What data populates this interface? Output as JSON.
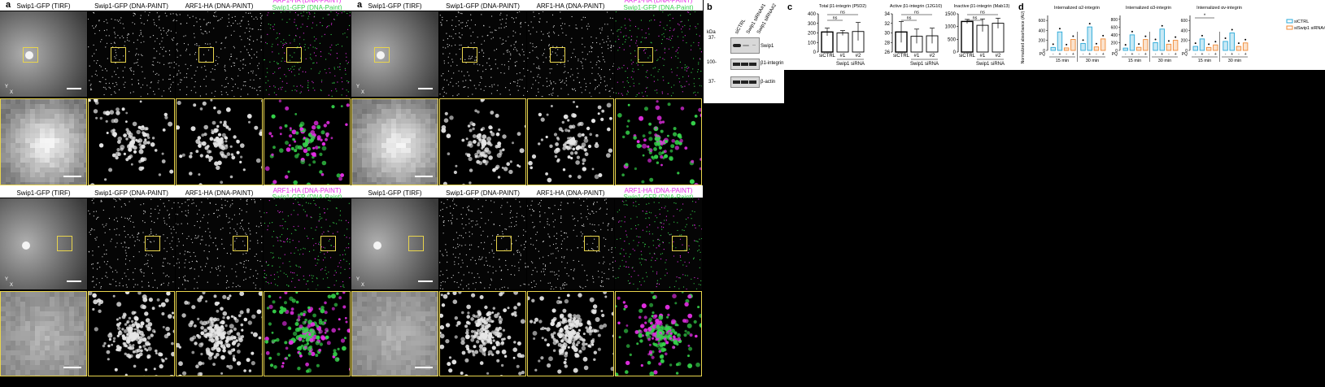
{
  "panels": [
    {
      "label": "a",
      "rows": [
        {
          "titles": [
            "Swip1-GFP (TIRF)",
            "Swip1-GFP (DNA-PAINT)",
            "ARF1-HA (DNA-PAINT)"
          ],
          "merge_title_1": "ARF1-HA (DNA-PAINT)",
          "merge_title_2": "Swip1-GFP (DNA-Paint)"
        },
        {
          "titles": [
            "Swip1-GFP (TIRF)",
            "Swip1-GFP (DNA-PAINT)",
            "ARF1-HA (DNA-PAINT)"
          ],
          "merge_title_1": "ARF1-HA (DNA-PAINT)",
          "merge_title_2": "Swip1-GFP (DNA-Paint)"
        }
      ]
    },
    {
      "label": "a",
      "rows": [
        {
          "titles": [
            "Swip1-GFP (TIRF)",
            "Swip1-GFP (DNA-PAINT)",
            "ARF1-HA (DNA-PAINT)"
          ],
          "merge_title_1": "ARF1-HA (DNA-PAINT)",
          "merge_title_2": "Swip1-GFP (DNA-Paint)"
        },
        {
          "titles": [
            "Swip1-GFP (TIRF)",
            "Swip1-GFP (DNA-PAINT)",
            "ARF1-HA (DNA-PAINT)"
          ],
          "merge_title_1": "ARF1-HA (DNA-PAINT)",
          "merge_title_2": "Swip1-GFP (DNA-Paint)"
        }
      ]
    }
  ],
  "axis_glyph": {
    "y": "Y",
    "x": "X"
  },
  "colors": {
    "magenta": "#e62ee6",
    "green": "#35d34a",
    "yellow": "#e8d44d",
    "cyan": "#29a8d8",
    "orange": "#f08a36"
  },
  "blot": {
    "label": "b",
    "kda": "kDa",
    "lanes": [
      "siCTRL",
      "Swip1 siRNA#1",
      "Swip1 siRNA#2"
    ],
    "bands": [
      {
        "marker": "37-",
        "name": "Swip1"
      },
      {
        "marker": "100-",
        "name": "β1-integrin"
      },
      {
        "marker": "37-",
        "name": "β-actin"
      }
    ]
  },
  "panel_c": {
    "label": "c",
    "group_label": "Swip1 siRNA",
    "ns": "ns",
    "charts": [
      {
        "title": "Total β1-integrin (P5D2)",
        "yticks": [
          "400",
          "300",
          "200",
          "100",
          "0"
        ]
      },
      {
        "title": "Active β1-integrin (12G10)",
        "yticks": [
          "34",
          "32",
          "30",
          "28",
          "26"
        ]
      },
      {
        "title": "Inactive β1-integrin (Mab13)",
        "yticks": [
          "1500",
          "1000",
          "500",
          "0"
        ]
      }
    ]
  },
  "panel_d": {
    "label": "d",
    "ylabel": "Normalized absorbance (AU)",
    "pq": "PQ",
    "minus": "-",
    "plus": "+",
    "times": [
      "15 min",
      "30 min"
    ],
    "star": "*",
    "legend": [
      "siCTRL",
      "siSwip1 siRNA#2"
    ],
    "charts": [
      {
        "title": "Internalized α2-integrin",
        "yticks": [
          "600",
          "400",
          "200",
          "0"
        ]
      },
      {
        "title": "Internalized α3-integrin",
        "yticks": [
          "800",
          "600",
          "400",
          "200",
          "0"
        ]
      },
      {
        "title": "Internalized αv-integrin",
        "yticks": [
          "600",
          "400",
          "200",
          "0"
        ]
      }
    ]
  },
  "chart_data": [
    {
      "type": "bar",
      "title": "Total β1-integrin (P5D2)",
      "categories": [
        "siCTRL",
        "#1",
        "#2"
      ],
      "values": [
        210,
        200,
        215
      ],
      "errors": [
        40,
        25,
        95
      ],
      "ylim": [
        0,
        400
      ],
      "xlabel": "Swip1 siRNA"
    },
    {
      "type": "bar",
      "title": "Active β1-integrin (12G10)",
      "categories": [
        "siCTRL",
        "#1",
        "#2"
      ],
      "values": [
        30.2,
        29.3,
        29.4
      ],
      "errors": [
        2.2,
        1.5,
        1.6
      ],
      "ylim": [
        26,
        34
      ],
      "xlabel": "Swip1 siRNA"
    },
    {
      "type": "bar",
      "title": "Inactive β1-integrin (Mab13)",
      "categories": [
        "siCTRL",
        "#1",
        "#2"
      ],
      "values": [
        1200,
        1050,
        1130
      ],
      "errors": [
        80,
        250,
        200
      ],
      "ylim": [
        0,
        1500
      ],
      "xlabel": "Swip1 siRNA"
    },
    {
      "type": "bar",
      "title": "Internalized α2-integrin",
      "categories": [
        "siCTRL -",
        "siCTRL +",
        "siSwip1 -",
        "siSwip1 +",
        "siCTRL -",
        "siCTRL +",
        "siSwip1 -",
        "siSwip1 +"
      ],
      "series": [
        {
          "name": "siCTRL",
          "values": [
            60,
            370,
            null,
            null,
            140,
            470,
            null,
            null
          ]
        },
        {
          "name": "siSwip1 siRNA#2",
          "values": [
            null,
            null,
            50,
            220,
            null,
            null,
            70,
            230
          ]
        }
      ],
      "ylim": [
        0,
        700
      ]
    },
    {
      "type": "bar",
      "title": "Internalized α3-integrin",
      "categories": [
        "siCTRL -",
        "siCTRL +",
        "siSwip1 -",
        "siSwip1 +",
        "siCTRL -",
        "siCTRL +",
        "siSwip1 -",
        "siSwip1 +"
      ],
      "series": [
        {
          "name": "siCTRL",
          "values": [
            60,
            400,
            null,
            null,
            200,
            550,
            null,
            null
          ]
        },
        {
          "name": "siSwip1 siRNA#2",
          "values": [
            null,
            null,
            80,
            280,
            null,
            null,
            160,
            260
          ]
        }
      ],
      "ylim": [
        0,
        900
      ]
    },
    {
      "type": "bar",
      "title": "Internalized αv-integrin",
      "categories": [
        "siCTRL -",
        "siCTRL +",
        "siSwip1 -",
        "siSwip1 +",
        "siCTRL -",
        "siCTRL +",
        "siSwip1 -",
        "siSwip1 +"
      ],
      "series": [
        {
          "name": "siCTRL",
          "values": [
            80,
            230,
            null,
            null,
            180,
            350,
            null,
            null
          ]
        },
        {
          "name": "siSwip1 siRNA#2",
          "values": [
            null,
            null,
            60,
            110,
            null,
            null,
            80,
            150
          ]
        }
      ],
      "ylim": [
        0,
        700
      ]
    }
  ]
}
